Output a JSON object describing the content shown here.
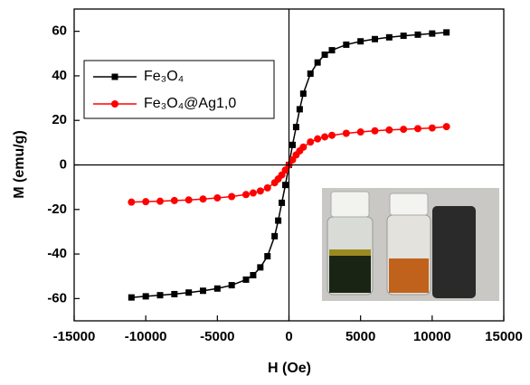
{
  "chart_data": {
    "type": "line",
    "x_label": "H (Oe)",
    "y_label": "M (emu/g)",
    "x": [
      -11000,
      -10000,
      -9000,
      -8000,
      -7000,
      -6000,
      -5000,
      -4000,
      -3000,
      -2500,
      -2000,
      -1500,
      -1000,
      -750,
      -500,
      -250,
      0,
      250,
      500,
      750,
      1000,
      1500,
      2000,
      2500,
      3000,
      4000,
      5000,
      6000,
      7000,
      8000,
      9000,
      10000,
      11000
    ],
    "series": [
      {
        "name": "Fe₃O₄",
        "color": "#000000",
        "marker": "square",
        "values": [
          -59.5,
          -59,
          -58.5,
          -58,
          -57.3,
          -56.5,
          -55.5,
          -54,
          -51.5,
          -49.5,
          -46,
          -41,
          -32,
          -25,
          -17,
          -9,
          0,
          9,
          17,
          25,
          32,
          41,
          46,
          49.5,
          51.5,
          54,
          55.5,
          56.5,
          57.3,
          58,
          58.5,
          59,
          59.5
        ]
      },
      {
        "name": "Fe₃O₄@Ag1,0",
        "color": "#ff0000",
        "marker": "circle",
        "values": [
          -16.7,
          -16.5,
          -16.3,
          -16,
          -15.7,
          -15.3,
          -14.8,
          -14.2,
          -13.3,
          -12.6,
          -11.7,
          -10.3,
          -8,
          -6.3,
          -4.5,
          -2.3,
          0,
          2.3,
          4.5,
          6.3,
          8,
          10.3,
          11.7,
          12.6,
          13.3,
          14.2,
          14.8,
          15.3,
          15.7,
          16,
          16.3,
          16.6,
          17.2
        ]
      }
    ],
    "xlim": [
      -15000,
      15000
    ],
    "xticks": [
      -15000,
      -10000,
      -5000,
      0,
      5000,
      10000,
      15000
    ],
    "ylim": [
      -70,
      70
    ],
    "yticks": [
      -60,
      -40,
      -20,
      0,
      20,
      40,
      60
    ],
    "grid": false,
    "zero_lines": true,
    "legend": "upper left"
  }
}
